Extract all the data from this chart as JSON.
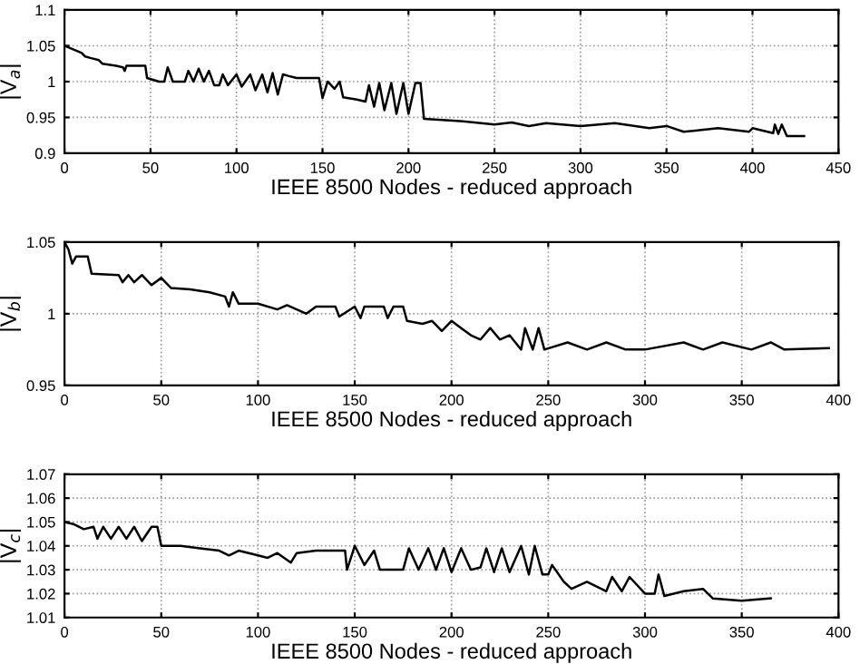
{
  "chart_data": [
    {
      "type": "line",
      "xlabel": "IEEE 8500 Nodes - reduced approach",
      "ylabel": "|V$_{a}$|",
      "xlim": [
        0,
        450
      ],
      "xticks": [
        0,
        50,
        100,
        150,
        200,
        250,
        300,
        350,
        400,
        450
      ],
      "ylim": [
        0.9,
        1.1
      ],
      "yticks": [
        0.9,
        0.95,
        1,
        1.05,
        1.1
      ],
      "grid": true,
      "line_style": "solid",
      "series": [
        {
          "color": "#000000",
          "x": [
            0,
            5,
            10,
            12,
            15,
            20,
            22,
            30,
            34,
            35,
            36,
            47,
            48,
            55,
            58,
            60,
            63,
            70,
            72,
            75,
            78,
            81,
            84,
            87,
            90,
            92,
            95,
            100,
            103,
            108,
            111,
            115,
            118,
            121,
            124,
            127,
            130,
            135,
            148,
            150,
            153,
            157,
            160,
            162,
            170,
            175,
            177,
            180,
            183,
            186,
            190,
            193,
            197,
            200,
            204,
            207,
            209,
            230,
            250,
            260,
            270,
            280,
            300,
            320,
            340,
            350,
            360,
            380,
            398,
            400,
            412,
            413,
            415,
            417,
            420,
            430
          ],
          "values": [
            1.05,
            1.045,
            1.04,
            1.035,
            1.033,
            1.03,
            1.025,
            1.022,
            1.02,
            1.015,
            1.022,
            1.022,
            1.005,
            1.0,
            1.0,
            1.02,
            1.0,
            1.0,
            1.015,
            1.0,
            1.018,
            1.0,
            1.015,
            0.995,
            0.995,
            1.01,
            0.995,
            1.01,
            0.993,
            1.01,
            0.988,
            1.01,
            0.985,
            1.012,
            0.982,
            1.01,
            1.008,
            1.005,
            1.005,
            0.977,
            1.0,
            0.99,
            1.0,
            0.978,
            0.975,
            0.972,
            0.995,
            0.965,
            0.998,
            0.96,
            0.998,
            0.955,
            0.998,
            0.955,
            0.998,
            0.998,
            0.948,
            0.945,
            0.94,
            0.943,
            0.938,
            0.942,
            0.938,
            0.942,
            0.935,
            0.938,
            0.93,
            0.935,
            0.93,
            0.935,
            0.928,
            0.94,
            0.927,
            0.94,
            0.924,
            0.924
          ]
        }
      ]
    },
    {
      "type": "line",
      "xlabel": "IEEE 8500 Nodes - reduced approach",
      "ylabel": "|V$_{b}$|",
      "xlim": [
        0,
        400
      ],
      "xticks": [
        0,
        50,
        100,
        150,
        200,
        250,
        300,
        350,
        400
      ],
      "ylim": [
        0.95,
        1.05
      ],
      "yticks": [
        0.95,
        1,
        1.05
      ],
      "grid": true,
      "line_style": "solid",
      "series": [
        {
          "color": "#000000",
          "x": [
            0,
            2,
            4,
            6,
            12,
            14,
            28,
            30,
            33,
            36,
            40,
            45,
            50,
            55,
            65,
            75,
            83,
            85,
            87,
            90,
            100,
            110,
            115,
            125,
            130,
            140,
            142,
            150,
            153,
            155,
            165,
            167,
            170,
            175,
            177,
            185,
            190,
            195,
            200,
            205,
            210,
            215,
            220,
            225,
            230,
            233,
            236,
            238,
            242,
            245,
            248,
            260,
            270,
            280,
            290,
            300,
            320,
            330,
            340,
            355,
            365,
            372,
            395
          ],
          "values": [
            1.05,
            1.045,
            1.035,
            1.04,
            1.04,
            1.028,
            1.027,
            1.022,
            1.027,
            1.022,
            1.027,
            1.02,
            1.025,
            1.018,
            1.017,
            1.015,
            1.012,
            1.005,
            1.015,
            1.007,
            1.007,
            1.003,
            1.006,
            1.0,
            1.005,
            1.005,
            0.998,
            1.005,
            0.997,
            1.005,
            1.005,
            0.997,
            1.005,
            1.005,
            0.995,
            0.993,
            0.995,
            0.988,
            0.995,
            0.99,
            0.985,
            0.982,
            0.99,
            0.982,
            0.985,
            0.98,
            0.975,
            0.99,
            0.975,
            0.99,
            0.975,
            0.98,
            0.975,
            0.98,
            0.975,
            0.975,
            0.98,
            0.975,
            0.98,
            0.975,
            0.98,
            0.975,
            0.976
          ]
        }
      ]
    },
    {
      "type": "line",
      "xlabel": "IEEE 8500 Nodes - reduced approach",
      "ylabel": "|V$_{c}$|",
      "xlim": [
        0,
        400
      ],
      "xticks": [
        0,
        50,
        100,
        150,
        200,
        250,
        300,
        350,
        400
      ],
      "ylim": [
        1.01,
        1.07
      ],
      "yticks": [
        1.01,
        1.02,
        1.03,
        1.04,
        1.05,
        1.06,
        1.07
      ],
      "grid": true,
      "line_style": "solid",
      "series": [
        {
          "color": "#000000",
          "x": [
            0,
            5,
            10,
            15,
            17,
            20,
            24,
            28,
            32,
            36,
            40,
            45,
            48,
            50,
            60,
            70,
            80,
            85,
            90,
            100,
            105,
            110,
            117,
            120,
            130,
            145,
            146,
            150,
            155,
            160,
            163,
            175,
            178,
            183,
            188,
            192,
            196,
            200,
            205,
            210,
            215,
            218,
            222,
            226,
            230,
            236,
            240,
            243,
            247,
            250,
            252,
            258,
            262,
            270,
            280,
            283,
            288,
            292,
            300,
            305,
            307,
            310,
            320,
            330,
            335,
            350,
            365
          ],
          "values": [
            1.05,
            1.049,
            1.047,
            1.048,
            1.043,
            1.048,
            1.043,
            1.048,
            1.043,
            1.048,
            1.042,
            1.048,
            1.048,
            1.04,
            1.04,
            1.039,
            1.038,
            1.036,
            1.038,
            1.036,
            1.035,
            1.037,
            1.033,
            1.037,
            1.038,
            1.038,
            1.03,
            1.04,
            1.032,
            1.038,
            1.03,
            1.03,
            1.039,
            1.03,
            1.039,
            1.03,
            1.039,
            1.029,
            1.039,
            1.03,
            1.031,
            1.039,
            1.029,
            1.039,
            1.029,
            1.04,
            1.028,
            1.04,
            1.028,
            1.028,
            1.032,
            1.025,
            1.022,
            1.025,
            1.021,
            1.027,
            1.021,
            1.027,
            1.02,
            1.02,
            1.028,
            1.019,
            1.021,
            1.022,
            1.018,
            1.017,
            1.018
          ]
        }
      ]
    }
  ]
}
